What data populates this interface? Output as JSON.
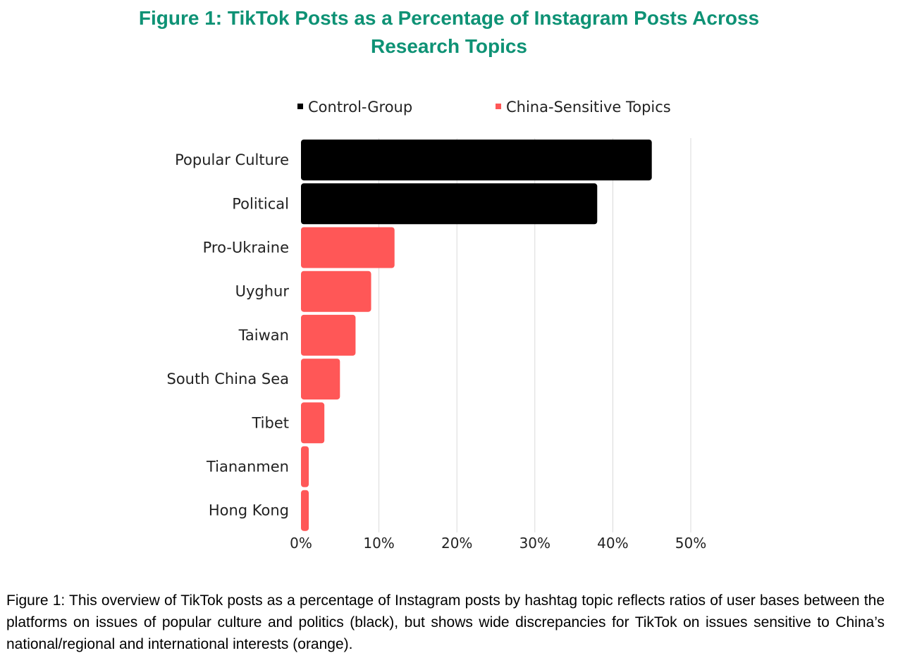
{
  "figure": {
    "title_line1": "Figure 1: TikTok Posts as a Percentage of Instagram Posts Across",
    "title_line2": "Research Topics",
    "title_color": "#0e9275",
    "caption": "Figure 1: This overview of TikTok posts as a percentage of Instagram posts by hashtag topic reflects ratios of user bases between the platforms on issues of popular culture and politics (black), but shows wide discrepancies for TikTok on issues sensitive to China’s national/regional and international interests (orange)."
  },
  "chart_data": {
    "type": "bar",
    "orientation": "horizontal",
    "title": "",
    "xlabel": "",
    "ylabel": "",
    "categories": [
      "Popular Culture",
      "Political",
      "Pro-Ukraine",
      "Uyghur",
      "Taiwan",
      "South China Sea",
      "Tibet",
      "Tiananmen",
      "Hong Kong"
    ],
    "values": [
      45,
      38,
      12,
      9,
      7,
      5,
      3,
      1,
      1
    ],
    "groups": [
      "Control-Group",
      "Control-Group",
      "China-Sensitive Topics",
      "China-Sensitive Topics",
      "China-Sensitive Topics",
      "China-Sensitive Topics",
      "China-Sensitive Topics",
      "China-Sensitive Topics",
      "China-Sensitive Topics"
    ],
    "legend": [
      {
        "name": "Control-Group",
        "color": "#000000"
      },
      {
        "name": "China-Sensitive Topics",
        "color": "#ff5757"
      }
    ],
    "legend_position": "top",
    "xlim": [
      0,
      50
    ],
    "xticks": [
      0,
      10,
      20,
      30,
      40,
      50
    ],
    "xtick_labels": [
      "0%",
      "10%",
      "20%",
      "30%",
      "40%",
      "50%"
    ],
    "grid": "vertical",
    "grid_color": "#d9d9d9"
  }
}
